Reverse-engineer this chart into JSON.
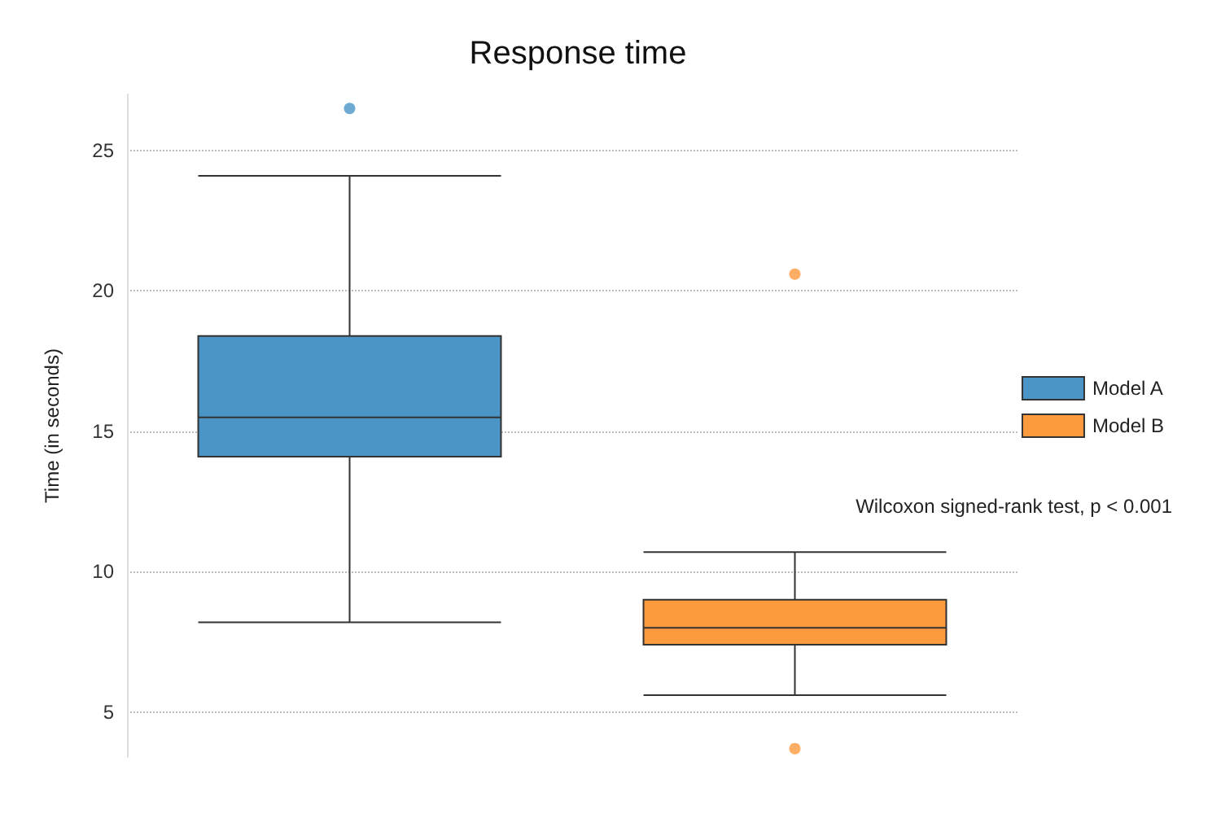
{
  "chart_data": {
    "type": "box",
    "title": "Response time",
    "ylabel": "Time (in seconds)",
    "categories": [
      null,
      null
    ],
    "series": [
      {
        "name": "Model A",
        "color": "#4a94c6",
        "boxes": [
          {
            "low": 8.2,
            "q1": 14.1,
            "median": 15.5,
            "q3": 18.4,
            "high": 24.1,
            "outliers": [
              26.5
            ]
          },
          null
        ]
      },
      {
        "name": "Model B",
        "color": "#fd9a3d",
        "boxes": [
          null,
          {
            "low": 5.6,
            "q1": 7.4,
            "median": 8.0,
            "q3": 9.0,
            "high": 10.7,
            "outliers": [
              20.6,
              3.7
            ]
          }
        ]
      }
    ],
    "ylim": [
      3.4,
      27
    ],
    "yticks": [
      5,
      10,
      15,
      20,
      25
    ],
    "grid": "y",
    "legend": "right",
    "annotations": [
      "Wilcoxon signed-rank test, p < 0.001"
    ]
  }
}
